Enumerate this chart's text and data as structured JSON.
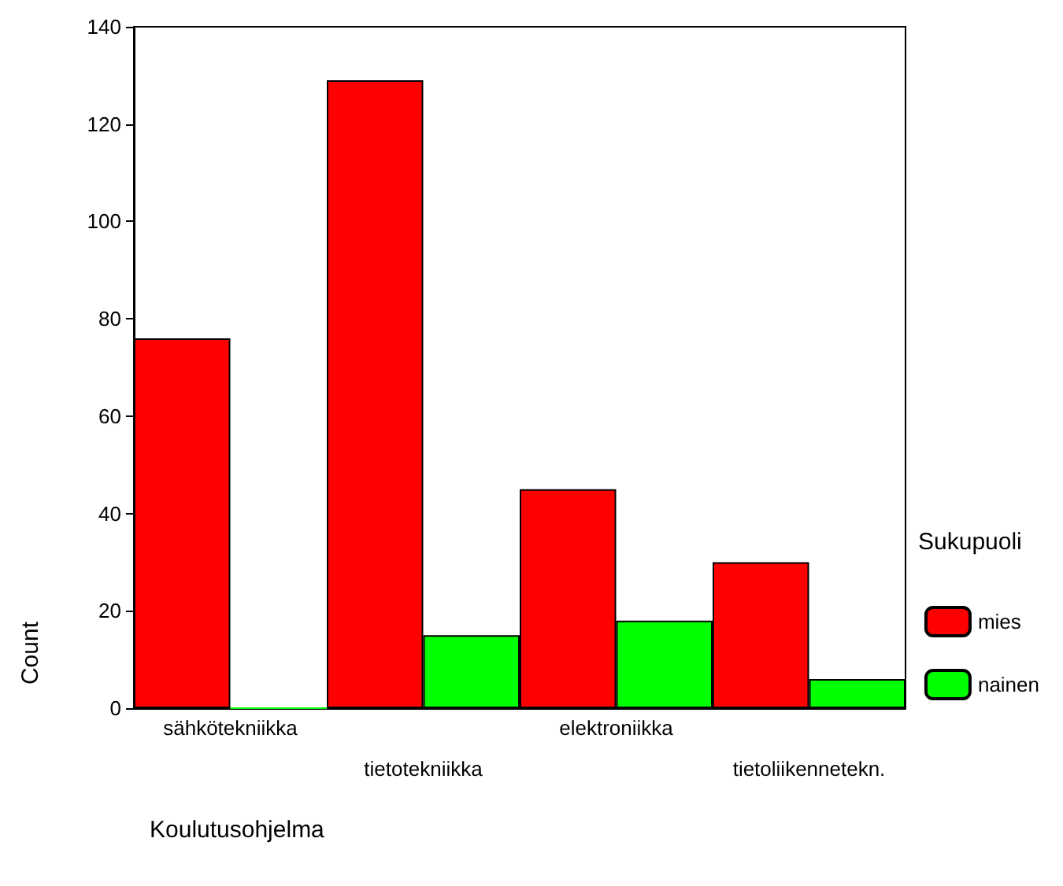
{
  "chart_data": {
    "type": "bar",
    "xlabel": "Koulutusohjelma",
    "ylabel": "Count",
    "legend_title": "Sukupuoli",
    "categories": [
      "sähkötekniikka",
      "tietotekniikka",
      "elektroniikka",
      "tietoliikennetekn."
    ],
    "series": [
      {
        "name": "mies",
        "color": "#ff0000",
        "values": [
          76,
          129,
          45,
          30
        ]
      },
      {
        "name": "nainen",
        "color": "#00ff00",
        "values": [
          0,
          15,
          18,
          6
        ]
      }
    ],
    "ylim": [
      0,
      140
    ],
    "yticks": [
      0,
      20,
      40,
      60,
      80,
      100,
      120,
      140
    ],
    "grid": false,
    "legend": "right"
  }
}
